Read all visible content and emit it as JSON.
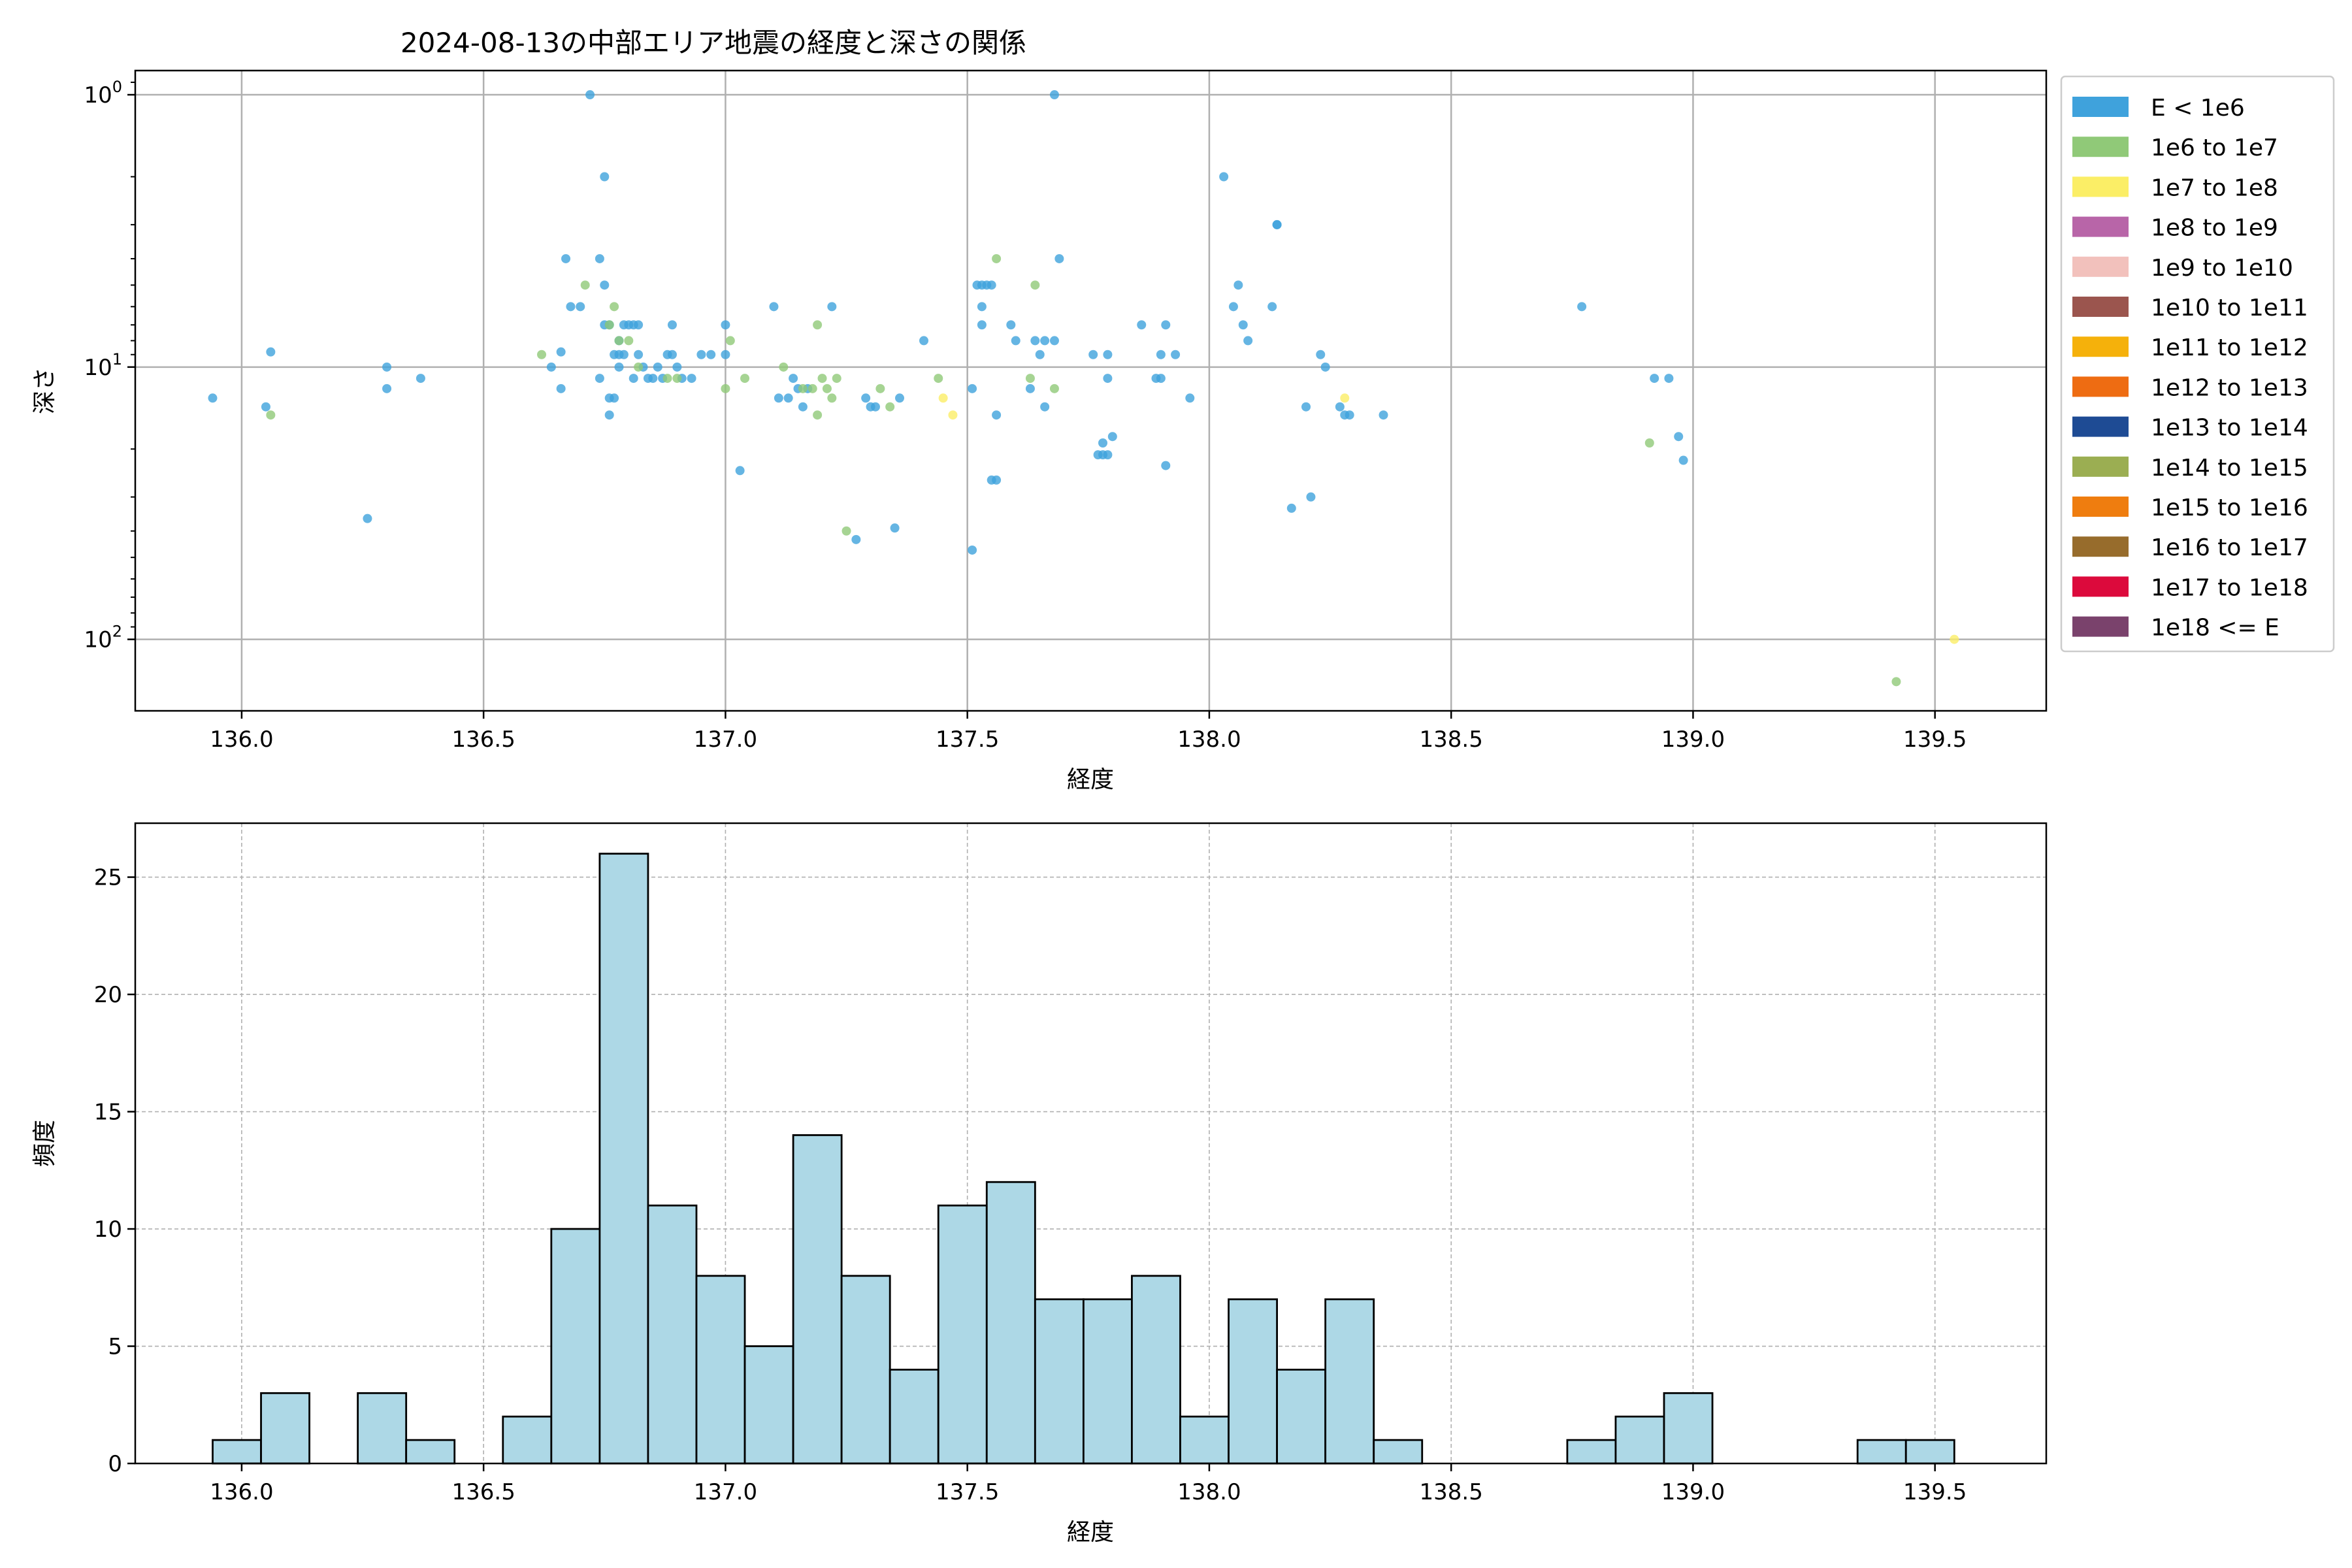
{
  "chart_data": [
    {
      "type": "scatter",
      "title": "2024-08-13の中部エリア地震の経度と深さの関係",
      "xlabel": "経度",
      "ylabel": "深さ",
      "xlim": [
        135.78,
        139.73
      ],
      "ylim": [
        183,
        0.815
      ],
      "y_scale": "log",
      "y_inverted": true,
      "grid": true,
      "x_ticks": [
        136.0,
        136.5,
        137.0,
        137.5,
        138.0,
        138.5,
        139.0,
        139.5
      ],
      "x_tick_labels": [
        "136.0",
        "136.5",
        "137.0",
        "137.5",
        "138.0",
        "138.5",
        "139.0",
        "139.5"
      ],
      "y_ticks": [
        1,
        10,
        100
      ],
      "y_tick_labels": [
        {
          "base": "10",
          "exp": "0"
        },
        {
          "base": "10",
          "exp": "1"
        },
        {
          "base": "10",
          "exp": "2"
        }
      ],
      "legend_position": "outside-right",
      "legend": [
        {
          "label": "E < 1e6",
          "color": "#3fa2dc"
        },
        {
          "label": "1e6 to 1e7",
          "color": "#90c978"
        },
        {
          "label": "1e7 to 1e8",
          "color": "#fbee66"
        },
        {
          "label": "1e8 to 1e9",
          "color": "#b865a8"
        },
        {
          "label": "1e9 to 1e10",
          "color": "#f2c1bc"
        },
        {
          "label": "1e10 to 1e11",
          "color": "#9b554e"
        },
        {
          "label": "1e11 to 1e12",
          "color": "#f5b10b"
        },
        {
          "label": "1e12 to 1e13",
          "color": "#ee6c12"
        },
        {
          "label": "1e13 to 1e14",
          "color": "#1e4b94"
        },
        {
          "label": "1e14 to 1e15",
          "color": "#9bae52"
        },
        {
          "label": "1e15 to 1e16",
          "color": "#ef7d0f"
        },
        {
          "label": "1e16 to 1e17",
          "color": "#976c2c"
        },
        {
          "label": "1e17 to 1e18",
          "color": "#dc0a3c"
        },
        {
          "label": "1e18 <= E",
          "color": "#7a426c"
        }
      ],
      "series": [
        {
          "name": "E < 1e6",
          "color": "#3fa2dc",
          "points": [
            [
              135.94,
              13.0
            ],
            [
              136.05,
              14.0
            ],
            [
              136.06,
              8.8
            ],
            [
              136.26,
              36.0
            ],
            [
              136.3,
              12.0
            ],
            [
              136.3,
              10.0
            ],
            [
              136.37,
              11.0
            ],
            [
              136.64,
              10.0
            ],
            [
              136.66,
              8.8
            ],
            [
              136.66,
              12.0
            ],
            [
              136.67,
              4.0
            ],
            [
              136.68,
              6.0
            ],
            [
              136.7,
              6.0
            ],
            [
              136.72,
              1.0
            ],
            [
              136.74,
              11.0
            ],
            [
              136.74,
              4.0
            ],
            [
              136.75,
              5.0
            ],
            [
              136.75,
              2.0
            ],
            [
              136.75,
              7.0
            ],
            [
              136.76,
              7.0
            ],
            [
              136.76,
              13.0
            ],
            [
              136.76,
              15.0
            ],
            [
              136.77,
              9.0
            ],
            [
              136.77,
              13.0
            ],
            [
              136.78,
              9.0
            ],
            [
              136.78,
              10.0
            ],
            [
              136.78,
              8.0
            ],
            [
              136.79,
              7.0
            ],
            [
              136.79,
              9.0
            ],
            [
              136.8,
              7.0
            ],
            [
              136.81,
              11.0
            ],
            [
              136.81,
              7.0
            ],
            [
              136.82,
              9.0
            ],
            [
              136.82,
              7.0
            ],
            [
              136.83,
              10.0
            ],
            [
              136.84,
              11.0
            ],
            [
              136.85,
              11.0
            ],
            [
              136.86,
              10.0
            ],
            [
              136.87,
              11.0
            ],
            [
              136.88,
              9.0
            ],
            [
              136.89,
              7.0
            ],
            [
              136.89,
              9.0
            ],
            [
              136.9,
              10.0
            ],
            [
              136.91,
              11.0
            ],
            [
              136.93,
              11.0
            ],
            [
              136.95,
              9.0
            ],
            [
              136.97,
              9.0
            ],
            [
              137.0,
              7.0
            ],
            [
              137.0,
              9.0
            ],
            [
              137.03,
              24.0
            ],
            [
              137.1,
              6.0
            ],
            [
              137.11,
              13.0
            ],
            [
              137.13,
              13.0
            ],
            [
              137.14,
              11.0
            ],
            [
              137.15,
              12.0
            ],
            [
              137.16,
              14.0
            ],
            [
              137.17,
              12.0
            ],
            [
              137.22,
              6.0
            ],
            [
              137.27,
              43.0
            ],
            [
              137.29,
              13.0
            ],
            [
              137.3,
              14.0
            ],
            [
              137.31,
              14.0
            ],
            [
              137.35,
              39.0
            ],
            [
              137.36,
              13.0
            ],
            [
              137.41,
              8.0
            ],
            [
              137.51,
              12.0
            ],
            [
              137.51,
              47.0
            ],
            [
              137.52,
              5.0
            ],
            [
              137.53,
              5.0
            ],
            [
              137.53,
              6.0
            ],
            [
              137.53,
              7.0
            ],
            [
              137.54,
              5.0
            ],
            [
              137.55,
              5.0
            ],
            [
              137.55,
              26.0
            ],
            [
              137.56,
              26.0
            ],
            [
              137.56,
              15.0
            ],
            [
              137.59,
              7.0
            ],
            [
              137.6,
              8.0
            ],
            [
              137.63,
              12.0
            ],
            [
              137.64,
              8.0
            ],
            [
              137.65,
              9.0
            ],
            [
              137.66,
              14.0
            ],
            [
              137.66,
              8.0
            ],
            [
              137.68,
              1.0
            ],
            [
              137.68,
              8.0
            ],
            [
              137.69,
              4.0
            ],
            [
              137.76,
              9.0
            ],
            [
              137.77,
              21.0
            ],
            [
              137.78,
              21.0
            ],
            [
              137.78,
              19.0
            ],
            [
              137.79,
              9.0
            ],
            [
              137.79,
              11.0
            ],
            [
              137.79,
              21.0
            ],
            [
              137.8,
              18.0
            ],
            [
              137.86,
              7.0
            ],
            [
              137.89,
              11.0
            ],
            [
              137.9,
              9.0
            ],
            [
              137.9,
              11.0
            ],
            [
              137.91,
              7.0
            ],
            [
              137.91,
              23.0
            ],
            [
              137.93,
              9.0
            ],
            [
              137.96,
              13.0
            ],
            [
              138.03,
              2.0
            ],
            [
              138.05,
              6.0
            ],
            [
              138.06,
              5.0
            ],
            [
              138.07,
              7.0
            ],
            [
              138.08,
              8.0
            ],
            [
              138.13,
              6.0
            ],
            [
              138.14,
              3.0
            ],
            [
              138.14,
              3.0
            ],
            [
              138.17,
              33.0
            ],
            [
              138.2,
              14.0
            ],
            [
              138.21,
              30.0
            ],
            [
              138.23,
              9.0
            ],
            [
              138.24,
              10.0
            ],
            [
              138.27,
              14.0
            ],
            [
              138.28,
              15.0
            ],
            [
              138.29,
              15.0
            ],
            [
              138.36,
              15.0
            ],
            [
              138.77,
              6.0
            ],
            [
              138.92,
              11.0
            ],
            [
              138.95,
              11.0
            ],
            [
              138.97,
              18.0
            ],
            [
              138.98,
              22.0
            ]
          ]
        },
        {
          "name": "1e6 to 1e7",
          "color": "#90c978",
          "points": [
            [
              136.06,
              15.0
            ],
            [
              136.62,
              9.0
            ],
            [
              136.71,
              5.0
            ],
            [
              136.76,
              7.0
            ],
            [
              136.77,
              6.0
            ],
            [
              136.78,
              8.0
            ],
            [
              136.8,
              8.0
            ],
            [
              136.82,
              10.0
            ],
            [
              136.88,
              11.0
            ],
            [
              136.9,
              11.0
            ],
            [
              137.0,
              12.0
            ],
            [
              137.01,
              8.0
            ],
            [
              137.04,
              11.0
            ],
            [
              137.12,
              10.0
            ],
            [
              137.16,
              12.0
            ],
            [
              137.18,
              12.0
            ],
            [
              137.19,
              15.0
            ],
            [
              137.19,
              7.0
            ],
            [
              137.2,
              11.0
            ],
            [
              137.21,
              12.0
            ],
            [
              137.22,
              13.0
            ],
            [
              137.23,
              11.0
            ],
            [
              137.25,
              40.0
            ],
            [
              137.32,
              12.0
            ],
            [
              137.34,
              14.0
            ],
            [
              137.44,
              11.0
            ],
            [
              137.56,
              4.0
            ],
            [
              137.63,
              11.0
            ],
            [
              137.64,
              5.0
            ],
            [
              137.68,
              12.0
            ],
            [
              138.91,
              19.0
            ],
            [
              139.42,
              143.0
            ]
          ]
        },
        {
          "name": "1e7 to 1e8",
          "color": "#fbee66",
          "points": [
            [
              137.45,
              13.0
            ],
            [
              137.47,
              15.0
            ],
            [
              138.28,
              13.0
            ],
            [
              139.54,
              100.0
            ]
          ]
        }
      ]
    },
    {
      "type": "histogram",
      "xlabel": "経度",
      "ylabel": "頻度",
      "xlim": [
        135.78,
        139.73
      ],
      "ylim": [
        0,
        27.3
      ],
      "grid": true,
      "grid_style": "dashed",
      "bar_color": "#add8e6",
      "bar_edge_color": "#000000",
      "x_ticks": [
        136.0,
        136.5,
        137.0,
        137.5,
        138.0,
        138.5,
        139.0,
        139.5
      ],
      "x_tick_labels": [
        "136.0",
        "136.5",
        "137.0",
        "137.5",
        "138.0",
        "138.5",
        "139.0",
        "139.5"
      ],
      "y_ticks": [
        0,
        5,
        10,
        15,
        20,
        25
      ],
      "y_tick_labels": [
        "0",
        "5",
        "10",
        "15",
        "20",
        "25"
      ],
      "bin_start": 135.94,
      "bin_width": 0.1,
      "counts": [
        1,
        3,
        0,
        3,
        1,
        0,
        2,
        10,
        26,
        11,
        8,
        5,
        14,
        8,
        4,
        11,
        12,
        7,
        7,
        8,
        2,
        7,
        4,
        7,
        1,
        0,
        0,
        0,
        1,
        2,
        3,
        0,
        0,
        0,
        1,
        1
      ]
    }
  ]
}
